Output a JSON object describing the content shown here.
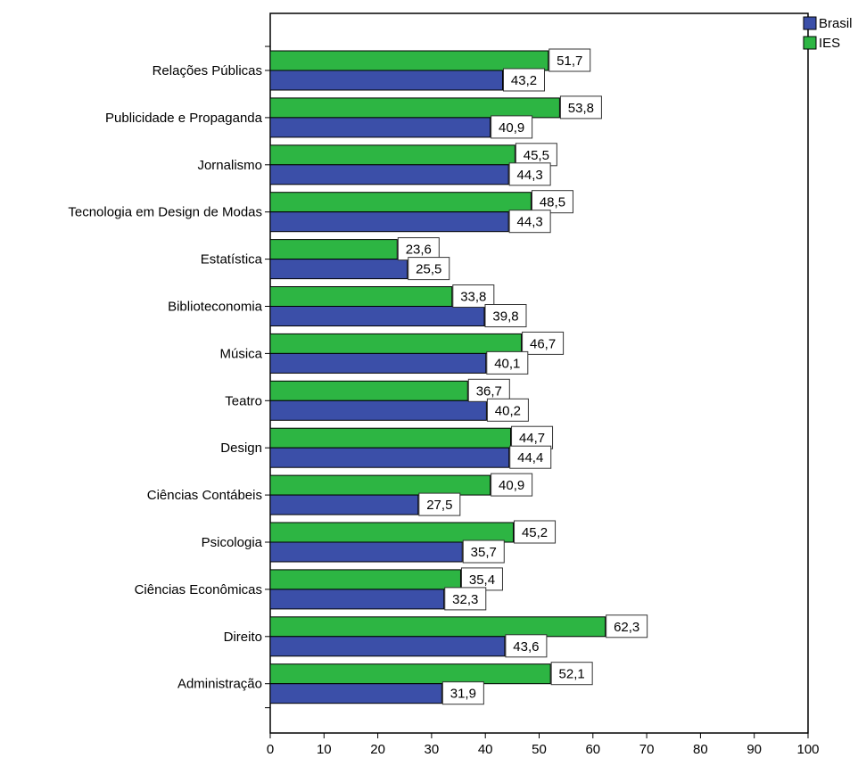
{
  "chart_data": {
    "type": "bar",
    "orientation": "horizontal",
    "categories": [
      "Relações Públicas",
      "Publicidade e Propaganda",
      "Jornalismo",
      "Tecnologia em Design de Modas",
      "Estatística",
      "Biblioteconomia",
      "Música",
      "Teatro",
      "Design",
      "Ciências Contábeis",
      "Psicologia",
      "Ciências Econômicas",
      "Direito",
      "Administração"
    ],
    "series": [
      {
        "name": "Brasil",
        "color": "#3b4fa8",
        "values": [
          43.2,
          40.9,
          44.3,
          44.3,
          25.5,
          39.8,
          40.1,
          40.2,
          44.4,
          27.5,
          35.7,
          32.3,
          43.6,
          31.9
        ],
        "labels": [
          "43,2",
          "40,9",
          "44,3",
          "44,3",
          "25,5",
          "39,8",
          "40,1",
          "40,2",
          "44,4",
          "27,5",
          "35,7",
          "32,3",
          "43,6",
          "31,9"
        ]
      },
      {
        "name": "IES",
        "color": "#2db543",
        "values": [
          51.7,
          53.8,
          45.5,
          48.5,
          23.6,
          33.8,
          46.7,
          36.7,
          44.7,
          40.9,
          45.2,
          35.4,
          62.3,
          52.1
        ],
        "labels": [
          "51,7",
          "53,8",
          "45,5",
          "48,5",
          "23,6",
          "33,8",
          "46,7",
          "36,7",
          "44,7",
          "40,9",
          "45,2",
          "35,4",
          "62,3",
          "52,1"
        ]
      }
    ],
    "xlim": [
      0,
      100
    ],
    "xticks": [
      "0",
      "10",
      "20",
      "30",
      "40",
      "50",
      "60",
      "70",
      "80",
      "90",
      "100"
    ],
    "grid": false,
    "legend_position": "top-right",
    "title": "",
    "xlabel": "",
    "ylabel": ""
  }
}
